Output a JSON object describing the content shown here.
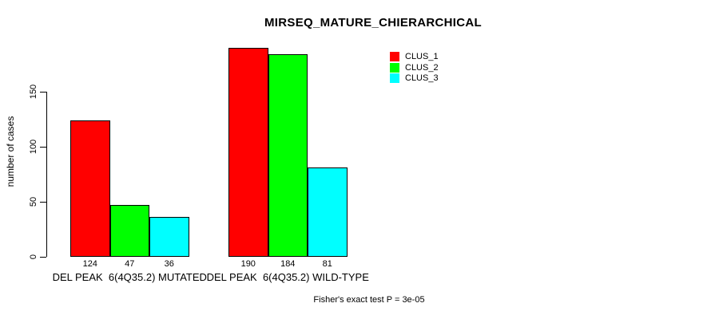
{
  "chart_data": {
    "type": "bar",
    "title": "MIRSEQ_MATURE_CHIERARCHICAL",
    "ylabel": "number of cases",
    "xlabel": "",
    "ylim": [
      0,
      150
    ],
    "yticks": [
      0,
      50,
      100,
      150
    ],
    "grid": false,
    "legend_position": "top-right",
    "categories": [
      "DEL PEAK  6(4Q35.2) MUTATED",
      "DEL PEAK  6(4Q35.2) WILD-TYPE"
    ],
    "series": [
      {
        "name": "CLUS_1",
        "color": "#ff0000",
        "values": [
          124,
          190
        ]
      },
      {
        "name": "CLUS_2",
        "color": "#00ff00",
        "values": [
          47,
          184
        ]
      },
      {
        "name": "CLUS_3",
        "color": "#00ffff",
        "values": [
          36,
          81
        ]
      }
    ],
    "bar_value_labels": [
      [
        124,
        47,
        36
      ],
      [
        190,
        184,
        81
      ]
    ],
    "footer": "Fisher's exact test P = 3e-05"
  }
}
